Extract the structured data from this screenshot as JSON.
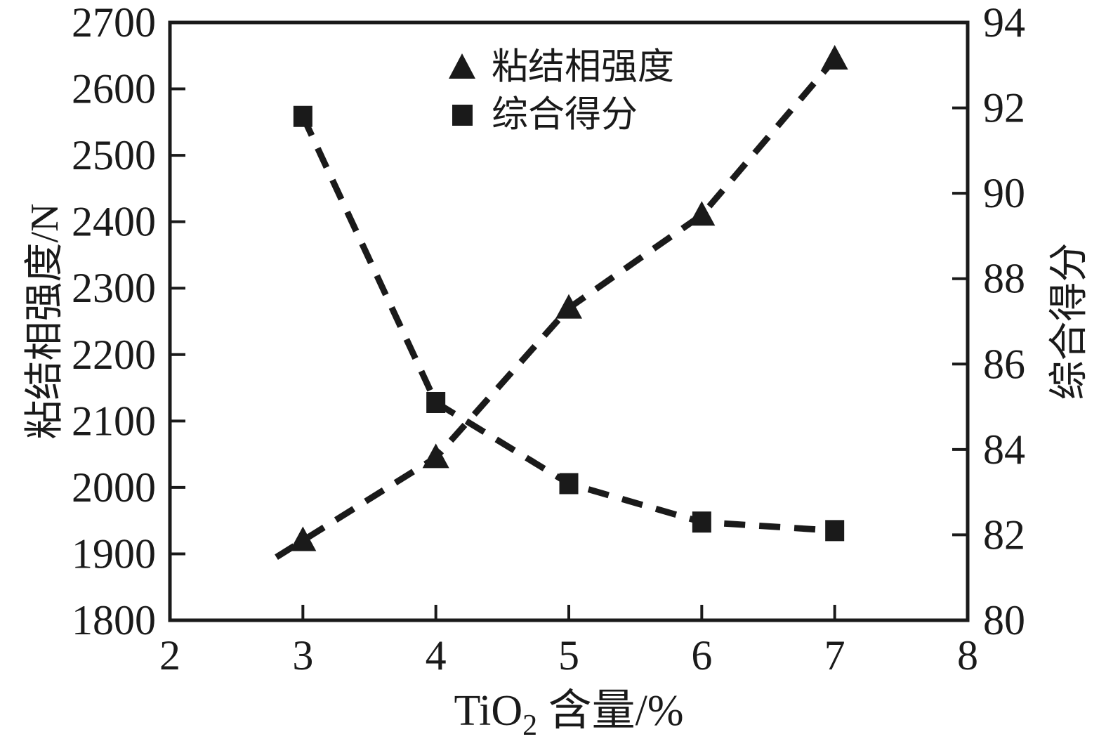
{
  "figure": {
    "background_color": "#ffffff",
    "ink_color": "#1a1a1a"
  },
  "chart_data": {
    "type": "line",
    "x": [
      3,
      4,
      5,
      6,
      7
    ],
    "series": [
      {
        "name": "粘结相强度",
        "axis": "left",
        "marker": "triangle",
        "line_style": "dashed",
        "values": [
          1920,
          2045,
          2270,
          2410,
          2645
        ],
        "extend_start_x": 2.8
      },
      {
        "name": "综合得分",
        "axis": "right",
        "marker": "square",
        "line_style": "dashed",
        "values": [
          91.8,
          85.1,
          83.2,
          82.3,
          82.1
        ]
      }
    ],
    "xlabel": {
      "base": "TiO",
      "subscript": "2",
      "rest": " 含量/%",
      "text": "TiO2 含量/%"
    },
    "ylabel_left": "粘结相强度/N",
    "ylabel_right": "综合得分",
    "xlim": [
      2,
      8
    ],
    "x_tick_labels": [
      2,
      3,
      4,
      5,
      6,
      7,
      8
    ],
    "ylim_left": [
      1800,
      2700
    ],
    "y_left_tick_labels": [
      1800,
      1900,
      2000,
      2100,
      2200,
      2300,
      2400,
      2500,
      2600,
      2700
    ],
    "ylim_right": [
      80,
      94
    ],
    "y_right_tick_labels": [
      80,
      82,
      84,
      86,
      88,
      90,
      92,
      94
    ],
    "grid": false,
    "legend": {
      "position": "upper-center",
      "entries": [
        "粘结相强度",
        "综合得分"
      ]
    }
  }
}
